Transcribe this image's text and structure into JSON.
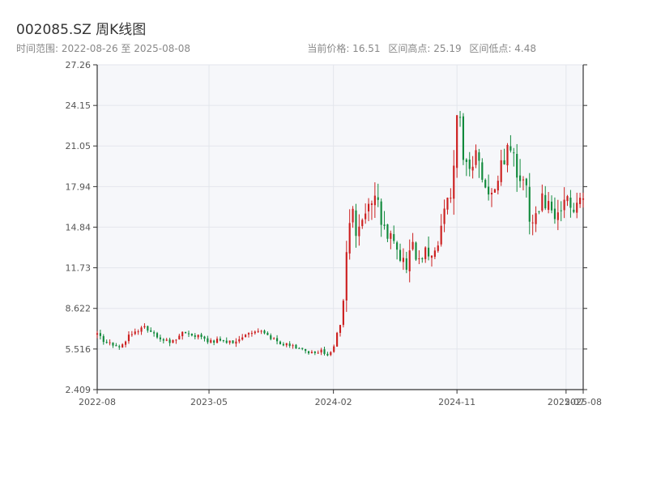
{
  "header": {
    "title": "002085.SZ 周K线图",
    "date_range": "时间范围: 2022-08-26 至 2025-08-08",
    "current_price": "当前价格: 16.51",
    "range_high": "区间高点: 25.19",
    "range_low": "区间低点: 4.48"
  },
  "colors": {
    "up": "#cc1f1f",
    "down": "#118a3c",
    "plot_bg": "#f6f7fa",
    "grid": "#e3e6ec",
    "axis": "#333333"
  },
  "chart_data": {
    "type": "candlestick",
    "title": "002085.SZ 周K线图",
    "xlabel": "",
    "ylabel": "",
    "ylim": [
      2.409,
      27.26
    ],
    "xlim": [
      "2022-08-26",
      "2025-08-08"
    ],
    "y_ticks": [
      "2.409",
      "5.516",
      "8.622",
      "11.73",
      "14.84",
      "17.94",
      "21.05",
      "24.15",
      "27.26"
    ],
    "x_ticks": [
      {
        "date": "2022-08-26",
        "label": "2022-08"
      },
      {
        "date": "2023-05-01",
        "label": "2023-05"
      },
      {
        "date": "2024-02-01",
        "label": "2024-02"
      },
      {
        "date": "2024-11-01",
        "label": "2024-11"
      },
      {
        "date": "2025-07-01",
        "label": "2025-07"
      },
      {
        "date": "2025-08-08",
        "label": "2025-08"
      }
    ],
    "grid": true,
    "anchors": [
      [
        "2022-08-26",
        6.6
      ],
      [
        "2022-09-16",
        6.0
      ],
      [
        "2022-10-14",
        5.6
      ],
      [
        "2022-11-11",
        6.8
      ],
      [
        "2022-12-09",
        7.1
      ],
      [
        "2023-01-06",
        6.5
      ],
      [
        "2023-02-03",
        6.0
      ],
      [
        "2023-03-03",
        6.7
      ],
      [
        "2023-03-31",
        6.6
      ],
      [
        "2023-04-28",
        6.1
      ],
      [
        "2023-05-26",
        6.2
      ],
      [
        "2023-06-23",
        6.0
      ],
      [
        "2023-07-21",
        6.6
      ],
      [
        "2023-08-18",
        6.9
      ],
      [
        "2023-09-15",
        6.4
      ],
      [
        "2023-10-13",
        5.9
      ],
      [
        "2023-11-10",
        5.6
      ],
      [
        "2023-12-08",
        5.2
      ],
      [
        "2024-01-05",
        5.4
      ],
      [
        "2024-01-19",
        5.0
      ],
      [
        "2024-02-02",
        5.8
      ],
      [
        "2024-02-09",
        6.8
      ],
      [
        "2024-02-16",
        7.2
      ],
      [
        "2024-02-23",
        9.0
      ],
      [
        "2024-03-01",
        12.5
      ],
      [
        "2024-03-08",
        15.5
      ],
      [
        "2024-03-15",
        16.5
      ],
      [
        "2024-03-22",
        14.0
      ],
      [
        "2024-04-05",
        15.5
      ],
      [
        "2024-04-19",
        16.6
      ],
      [
        "2024-05-03",
        17.8
      ],
      [
        "2024-05-17",
        15.6
      ],
      [
        "2024-05-31",
        14.5
      ],
      [
        "2024-06-14",
        13.5
      ],
      [
        "2024-06-28",
        12.6
      ],
      [
        "2024-07-12",
        12.0
      ],
      [
        "2024-07-26",
        13.5
      ],
      [
        "2024-08-09",
        12.2
      ],
      [
        "2024-08-23",
        12.8
      ],
      [
        "2024-09-06",
        12.5
      ],
      [
        "2024-09-20",
        13.8
      ],
      [
        "2024-09-27",
        15.5
      ],
      [
        "2024-10-04",
        16.5
      ],
      [
        "2024-10-18",
        17.5
      ],
      [
        "2024-10-25",
        19.0
      ],
      [
        "2024-11-01",
        23.0
      ],
      [
        "2024-11-08",
        22.5
      ],
      [
        "2024-11-15",
        20.0
      ],
      [
        "2024-11-29",
        19.5
      ],
      [
        "2024-12-13",
        20.5
      ],
      [
        "2024-12-27",
        18.5
      ],
      [
        "2025-01-10",
        16.8
      ],
      [
        "2025-01-24",
        17.5
      ],
      [
        "2025-02-07",
        19.5
      ],
      [
        "2025-02-21",
        20.5
      ],
      [
        "2025-03-07",
        19.8
      ],
      [
        "2025-03-21",
        19.0
      ],
      [
        "2025-04-04",
        17.5
      ],
      [
        "2025-04-11",
        15.5
      ],
      [
        "2025-04-25",
        16.0
      ],
      [
        "2025-05-09",
        16.8
      ],
      [
        "2025-05-23",
        16.2
      ],
      [
        "2025-06-06",
        15.6
      ],
      [
        "2025-06-20",
        16.0
      ],
      [
        "2025-07-04",
        16.8
      ],
      [
        "2025-07-18",
        16.6
      ],
      [
        "2025-08-08",
        16.51
      ]
    ]
  }
}
